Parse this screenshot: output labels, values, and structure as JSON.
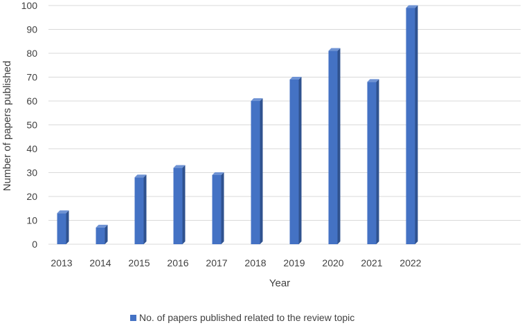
{
  "chart_data": {
    "type": "bar",
    "categories": [
      "2013",
      "2014",
      "2015",
      "2016",
      "2017",
      "2018",
      "2019",
      "2020",
      "2021",
      "2022"
    ],
    "values": [
      13,
      7,
      28,
      32,
      29,
      60,
      69,
      81,
      68,
      99
    ],
    "ylim": [
      0,
      100
    ],
    "yticks": [
      0,
      10,
      20,
      30,
      40,
      50,
      60,
      70,
      80,
      90,
      100
    ],
    "xlabel": "Year",
    "ylabel": "Number of papers published",
    "grid": true,
    "legend_position": "bottom",
    "series": [
      {
        "name": "No. of papers published related to the review topic",
        "color": "#4472c4"
      }
    ]
  },
  "colors": {
    "bar_front": "#4472c4",
    "bar_side": "#2f528f",
    "bar_top": "#6f93d4",
    "grid": "#d9d9d9",
    "text": "#404040"
  }
}
